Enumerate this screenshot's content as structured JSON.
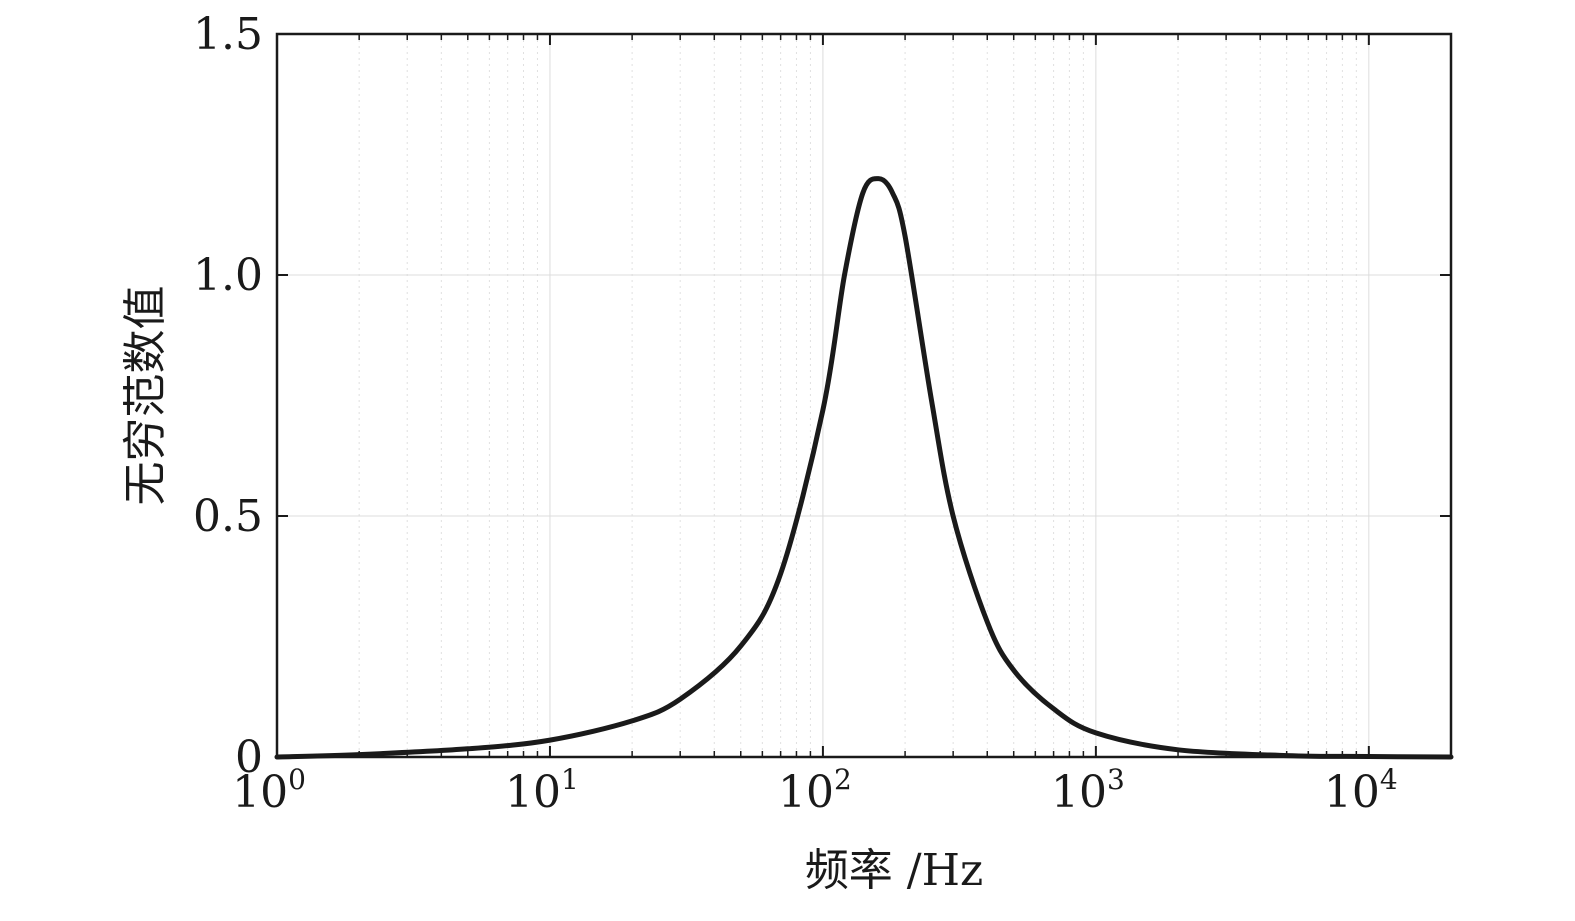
{
  "chart_data": {
    "type": "line",
    "xscale": "log",
    "xlim": [
      1,
      20000
    ],
    "ylim": [
      0,
      1.5
    ],
    "xlabel": "频率 /Hz",
    "ylabel": "无穷范数值",
    "x_ticks": [
      {
        "value": 1,
        "base": "10",
        "exp": "0"
      },
      {
        "value": 10,
        "base": "10",
        "exp": "1"
      },
      {
        "value": 100,
        "base": "10",
        "exp": "2"
      },
      {
        "value": 1000,
        "base": "10",
        "exp": "3"
      },
      {
        "value": 10000,
        "base": "10",
        "exp": "4"
      }
    ],
    "y_ticks": [
      {
        "value": 0,
        "label": "0"
      },
      {
        "value": 0.5,
        "label": "0.5"
      },
      {
        "value": 1.0,
        "label": "1.0"
      },
      {
        "value": 1.5,
        "label": "1.5"
      }
    ],
    "grid": true,
    "series": [
      {
        "color": "#1a1a1a",
        "x": [
          1,
          2,
          5,
          10,
          20,
          30,
          50,
          70,
          100,
          120,
          140,
          160,
          180,
          200,
          250,
          300,
          400,
          500,
          700,
          1000,
          2000,
          5000,
          10000,
          20000
        ],
        "y": [
          0.0,
          0.005,
          0.017,
          0.035,
          0.075,
          0.12,
          0.23,
          0.38,
          0.72,
          1.0,
          1.17,
          1.2,
          1.17,
          1.08,
          0.74,
          0.5,
          0.28,
          0.18,
          0.1,
          0.05,
          0.015,
          0.003,
          0.001,
          0.0
        ]
      }
    ]
  }
}
